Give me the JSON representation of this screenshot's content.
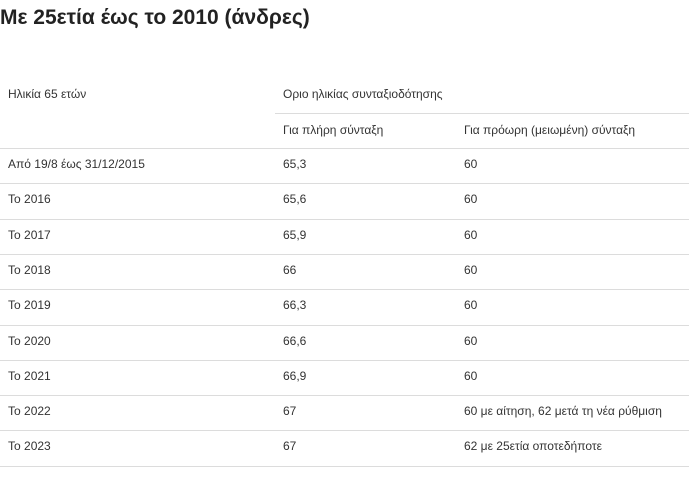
{
  "header": {
    "title": "Με 25ετία έως το 2010 (άνδρες)"
  },
  "table": {
    "column_header": "Ηλικία 65 ετών",
    "group_header": "Οριο ηλικίας συνταξιοδότησης",
    "sub_headers": [
      "Για πλήρη σύνταξη",
      "Για πρόωρη (μειωμένη) σύνταξη"
    ],
    "rows": [
      [
        "Από 19/8 έως 31/12/2015",
        "65,3",
        "60"
      ],
      [
        "Το 2016",
        "65,6",
        "60"
      ],
      [
        "Το 2017",
        "65,9",
        "60"
      ],
      [
        "Το 2018",
        "66",
        "60"
      ],
      [
        "Το 2019",
        "66,3",
        "60"
      ],
      [
        "Το 2020",
        "66,6",
        "60"
      ],
      [
        "Το 2021",
        "66,9",
        "60"
      ],
      [
        "Το 2022",
        "67",
        "60 με αίτηση, 62 μετά τη νέα ρύθμιση"
      ],
      [
        "Το 2023",
        "67",
        "62 με 25ετία οποτεδήποτε"
      ]
    ]
  }
}
